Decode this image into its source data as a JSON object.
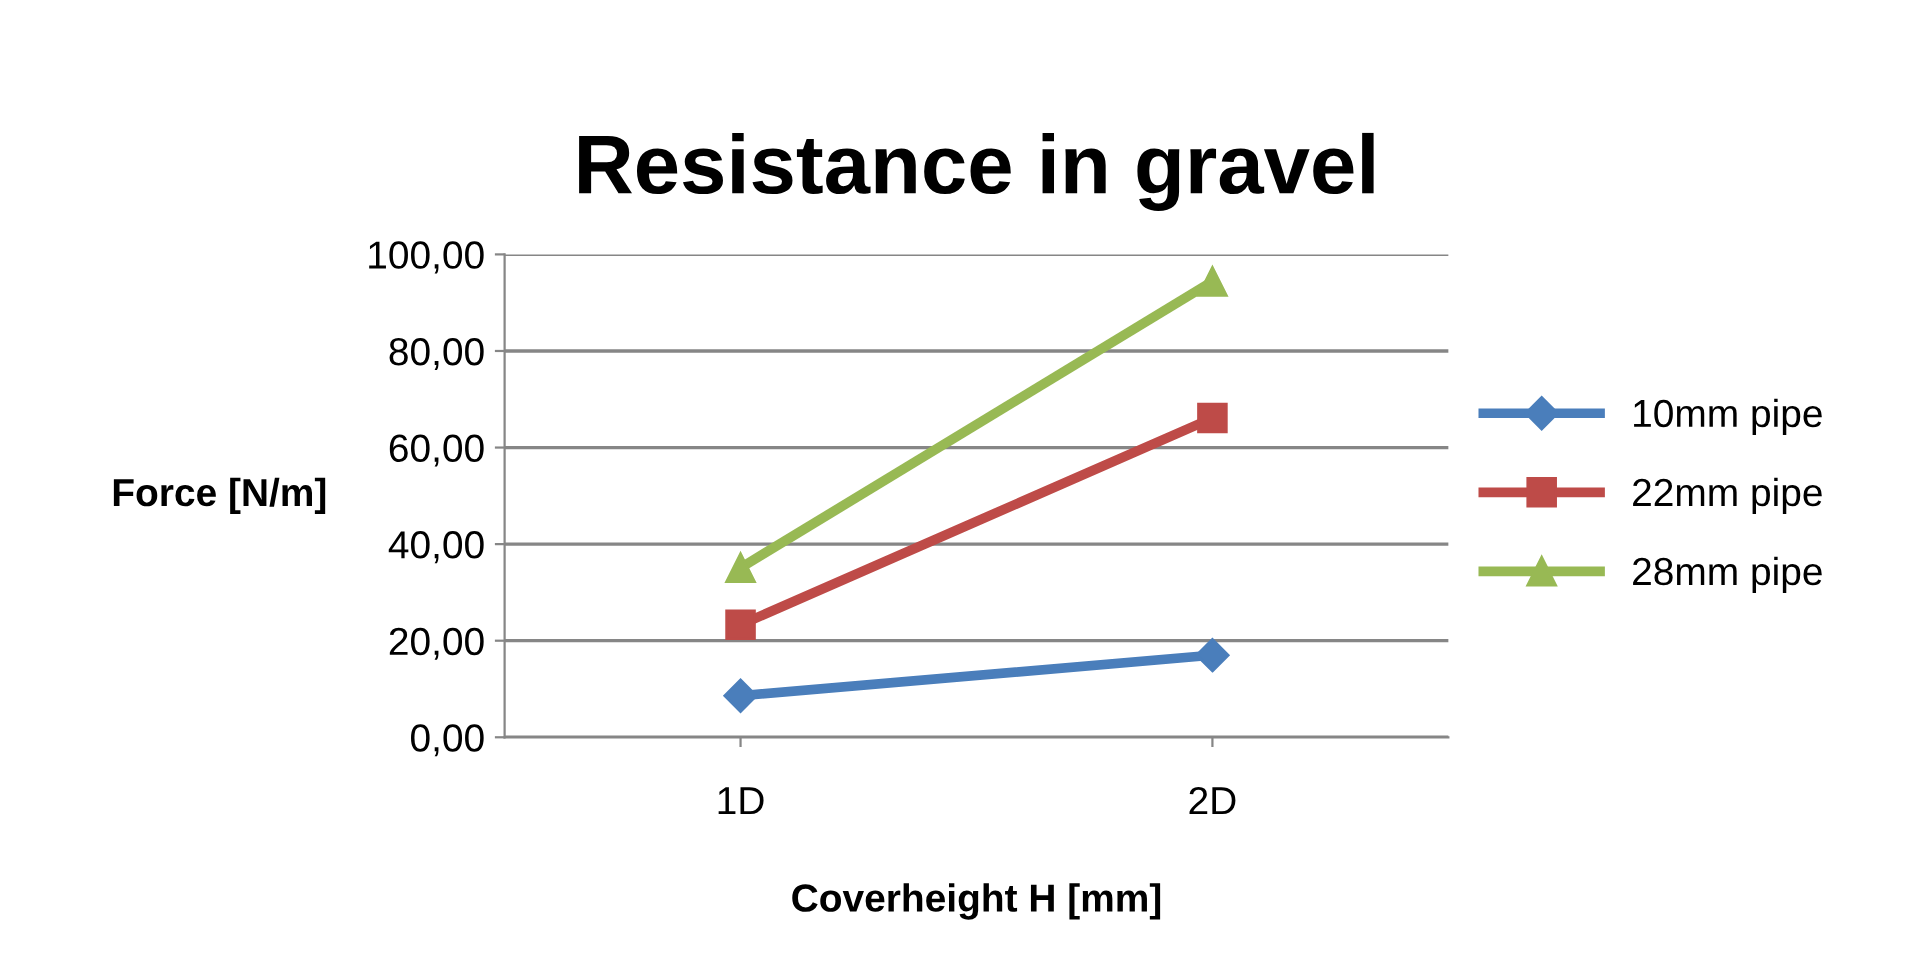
{
  "chart_data": {
    "type": "line",
    "title": "Resistance in gravel",
    "xlabel": "Coverheight H [mm]",
    "ylabel": "Force [N/m]",
    "categories": [
      "1D",
      "2D"
    ],
    "series": [
      {
        "name": "10mm pipe",
        "color": "#4a7ebb",
        "marker": "diamond",
        "values": [
          8.6,
          17.0
        ]
      },
      {
        "name": "22mm pipe",
        "color": "#be4b48",
        "marker": "square",
        "values": [
          23.3,
          66.1
        ]
      },
      {
        "name": "28mm pipe",
        "color": "#98b954",
        "marker": "triangle",
        "values": [
          35.1,
          94.4
        ]
      }
    ],
    "ylim": [
      0,
      100
    ],
    "yticks": [
      {
        "value": 0,
        "label": "0,00"
      },
      {
        "value": 20,
        "label": "20,00"
      },
      {
        "value": 40,
        "label": "40,00"
      },
      {
        "value": 60,
        "label": "60,00"
      },
      {
        "value": 80,
        "label": "80,00"
      },
      {
        "value": 100,
        "label": "100,00"
      }
    ],
    "grid": "y",
    "legend": "right"
  }
}
